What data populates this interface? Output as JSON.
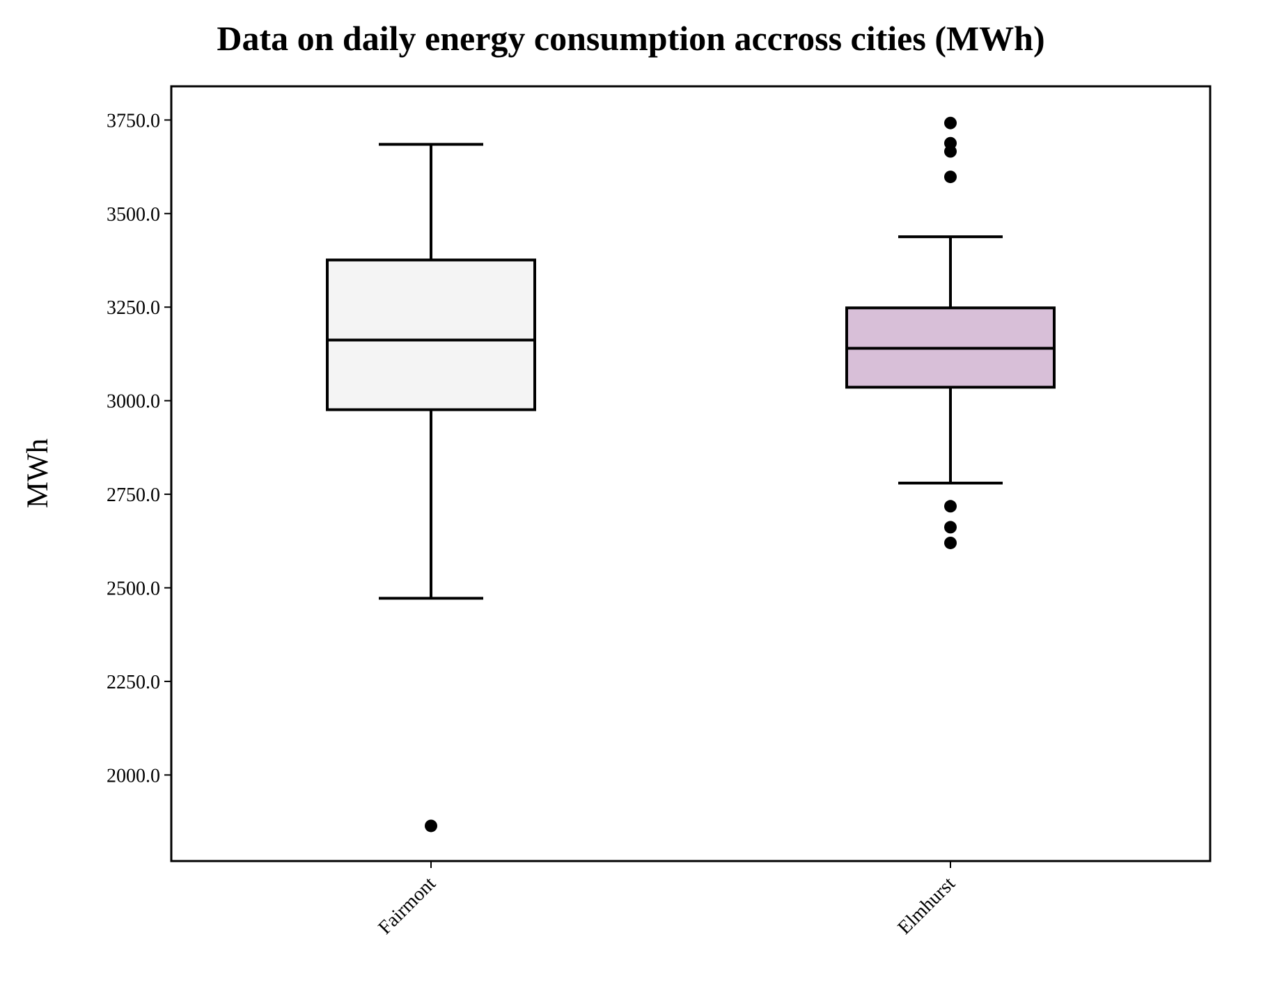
{
  "chart_data": {
    "type": "box",
    "title": "Data on daily energy consumption accross cities (MWh)",
    "xlabel": "",
    "ylabel": "MWh",
    "ylim": [
      1770,
      3840
    ],
    "yticks": [
      2000,
      2250,
      2500,
      2750,
      3000,
      3250,
      3500,
      3750
    ],
    "ytick_labels": [
      "2000.0",
      "2250.0",
      "2500.0",
      "2750.0",
      "3000.0",
      "3250.0",
      "3500.0",
      "3750.0"
    ],
    "grid": false,
    "categories": [
      "Fairmont",
      "Elmhurst"
    ],
    "boxes": [
      {
        "category": "Fairmont",
        "whisker_low": 2472,
        "q1": 2976,
        "median": 3162,
        "q3": 3376,
        "whisker_high": 3685,
        "outliers": [
          1864
        ],
        "color": "#f4f4f4"
      },
      {
        "category": "Elmhurst",
        "whisker_low": 2780,
        "q1": 3036,
        "median": 3140,
        "q3": 3248,
        "whisker_high": 3438,
        "outliers": [
          2620,
          2662,
          2718,
          3598,
          3666,
          3688,
          3742
        ],
        "color": "#d8bfd8"
      }
    ]
  }
}
